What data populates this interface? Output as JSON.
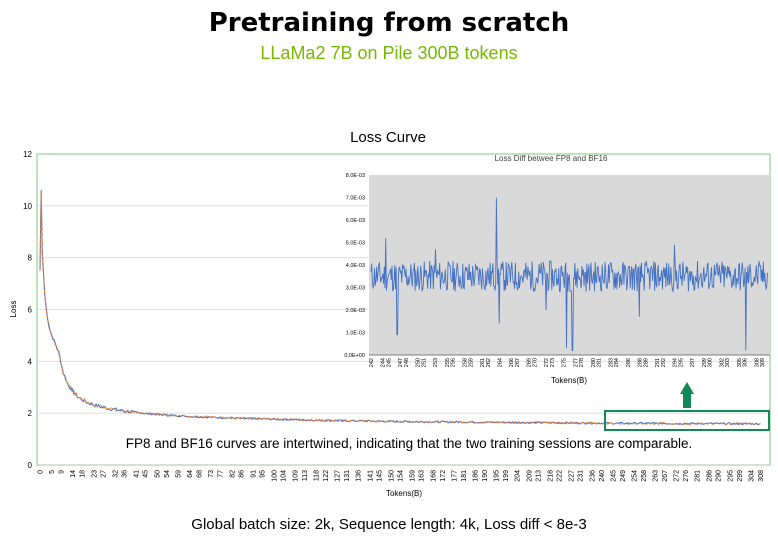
{
  "header": {
    "title": "Pretraining from scratch",
    "subtitle": "LLaMa2 7B on Pile 300B tokens"
  },
  "footer": {
    "text": "Global batch size: 2k, Sequence length: 4k, Loss diff < 8e-3"
  },
  "annotation": {
    "text": "FP8 and BF16 curves are intertwined, indicating that the two training sessions are comparable."
  },
  "colors": {
    "accent_green": "#76b900",
    "box_green": "#128a55",
    "arrow_green": "#128a55",
    "fp8_line": "#4472c4",
    "bf16_line": "#ed7d31",
    "inset_bg": "#d9d9d9",
    "diff_line": "#4472c4"
  },
  "chart_data": [
    {
      "type": "line",
      "title": "Loss Curve",
      "xlabel": "Tokens(B)",
      "ylabel": "Loss",
      "ylim": [
        0,
        12
      ],
      "yticks": [
        0,
        2,
        4,
        6,
        8,
        10,
        12
      ],
      "xlim": [
        0,
        310
      ],
      "xticks": [
        0,
        5,
        9,
        14,
        18,
        23,
        27,
        32,
        36,
        41,
        45,
        50,
        54,
        59,
        64,
        68,
        73,
        77,
        82,
        86,
        91,
        95,
        100,
        104,
        109,
        113,
        118,
        122,
        127,
        131,
        136,
        141,
        145,
        150,
        154,
        159,
        163,
        168,
        172,
        177,
        181,
        186,
        190,
        195,
        199,
        204,
        209,
        213,
        218,
        222,
        227,
        231,
        236,
        240,
        245,
        249,
        254,
        258,
        263,
        267,
        272,
        276,
        281,
        286,
        290,
        295,
        299,
        304,
        308
      ],
      "grid": "horizontal",
      "legend": "none",
      "series": [
        {
          "color": "#4472c4",
          "x": [
            0,
            0.5,
            1,
            2,
            3,
            4,
            5,
            6,
            8,
            10,
            12,
            14,
            16,
            18,
            20,
            23,
            27,
            32,
            36,
            41,
            45,
            50,
            59,
            68,
            77,
            86,
            95,
            104,
            113,
            122,
            136,
            150,
            163,
            177,
            190,
            204,
            218,
            231,
            245,
            258,
            272,
            286,
            299,
            308
          ],
          "y": [
            7.5,
            10.6,
            8.2,
            6.6,
            5.8,
            5.3,
            5.0,
            4.8,
            4.35,
            3.55,
            3.1,
            2.85,
            2.65,
            2.52,
            2.42,
            2.32,
            2.22,
            2.14,
            2.08,
            2.03,
            1.99,
            1.95,
            1.9,
            1.86,
            1.83,
            1.8,
            1.78,
            1.76,
            1.74,
            1.72,
            1.7,
            1.68,
            1.67,
            1.66,
            1.65,
            1.64,
            1.63,
            1.62,
            1.61,
            1.61,
            1.6,
            1.6,
            1.59,
            1.59
          ]
        },
        {
          "color": "#ed7d31",
          "x": [
            0,
            0.5,
            1,
            2,
            3,
            4,
            5,
            6,
            8,
            10,
            12,
            14,
            16,
            18,
            20,
            23,
            27,
            32,
            36,
            41,
            45,
            50,
            59,
            68,
            77,
            86,
            95,
            104,
            113,
            122,
            136,
            150,
            163,
            177,
            190,
            204,
            218,
            231,
            245,
            258,
            272,
            286,
            299,
            308
          ],
          "y": [
            7.5,
            10.6,
            8.2,
            6.6,
            5.8,
            5.3,
            5.0,
            4.8,
            4.35,
            3.55,
            3.1,
            2.85,
            2.65,
            2.52,
            2.42,
            2.32,
            2.22,
            2.14,
            2.08,
            2.03,
            1.99,
            1.95,
            1.9,
            1.86,
            1.83,
            1.8,
            1.78,
            1.76,
            1.74,
            1.72,
            1.7,
            1.68,
            1.67,
            1.66,
            1.65,
            1.64,
            1.63,
            1.62,
            1.61,
            1.61,
            1.6,
            1.6,
            1.59,
            1.59
          ]
        }
      ]
    },
    {
      "type": "line",
      "title": "Loss Diff betwee FP8 and BF16",
      "xlabel": "Tokens(B)",
      "ylabel": "",
      "ylim": [
        0,
        0.008
      ],
      "yticks": [
        "0.0E+00",
        "1.0E-03",
        "2.0E-03",
        "3.0E-03",
        "4.0E-03",
        "5.0E-03",
        "6.0E-03",
        "7.0E-03",
        "8.0E-03"
      ],
      "xlim": [
        242,
        310
      ],
      "xticks": [
        242,
        244,
        245,
        247,
        248,
        250,
        251,
        253,
        255,
        256,
        258,
        259,
        261,
        262,
        264,
        266,
        267,
        269,
        270,
        272,
        273,
        275,
        277,
        278,
        280,
        281,
        283,
        284,
        286,
        288,
        289,
        291,
        292,
        294,
        295,
        297,
        299,
        300,
        302,
        303,
        305,
        306,
        308,
        309
      ],
      "grid": "none",
      "legend": "none",
      "typical_range": [
        0.0029,
        0.0041
      ],
      "spikes": [
        {
          "x": 244.5,
          "y": 0.0052
        },
        {
          "x": 246.5,
          "y": 0.0009
        },
        {
          "x": 253.0,
          "y": 0.0047
        },
        {
          "x": 263.5,
          "y": 0.007
        },
        {
          "x": 264.0,
          "y": 0.0014
        },
        {
          "x": 272.0,
          "y": 0.002
        },
        {
          "x": 275.5,
          "y": 0.0003
        },
        {
          "x": 276.5,
          "y": 0.0002
        },
        {
          "x": 288.0,
          "y": 0.0017
        },
        {
          "x": 294.0,
          "y": 0.0049
        },
        {
          "x": 306.2,
          "y": 0.0002
        }
      ]
    }
  ]
}
